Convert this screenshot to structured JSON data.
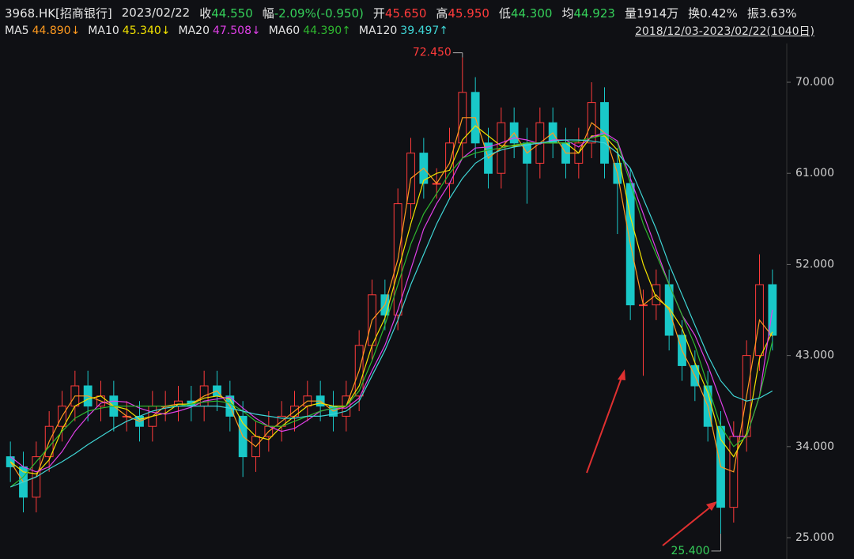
{
  "header": {
    "symbol": "3968.HK[招商银行]",
    "date": "2023/02/22",
    "fields": [
      {
        "label": "收",
        "value": "44.550",
        "color": "#35d05a"
      },
      {
        "label": "幅",
        "value": "-2.09%(-0.950)",
        "color": "#35d05a"
      },
      {
        "label": "开",
        "value": "45.650",
        "color": "#ff3b3b"
      },
      {
        "label": "高",
        "value": "45.950",
        "color": "#ff3b3b"
      },
      {
        "label": "低",
        "value": "44.300",
        "color": "#35d05a"
      },
      {
        "label": "均",
        "value": "44.923",
        "color": "#35d05a"
      },
      {
        "label": "量",
        "value": "1914万",
        "color": "#e6e6e6"
      },
      {
        "label": "换",
        "value": "0.42%",
        "color": "#e6e6e6"
      },
      {
        "label": "振",
        "value": "3.63%",
        "color": "#e6e6e6"
      }
    ],
    "range": "2018/12/03-2023/02/22(1040日)"
  },
  "chart_data": {
    "type": "candlestick",
    "categories": [
      null,
      null,
      null,
      null,
      null,
      null,
      null,
      null,
      null,
      null,
      null,
      null,
      null,
      null,
      null,
      null,
      null,
      null,
      null,
      null,
      null,
      null,
      null,
      null,
      null,
      null,
      null,
      null,
      null,
      null,
      null,
      null,
      null,
      null,
      null,
      null,
      null,
      null,
      null,
      null,
      null,
      null,
      null,
      null,
      null,
      null,
      null,
      null,
      null,
      null,
      null,
      null,
      null,
      null,
      null,
      null,
      null,
      null,
      null,
      null
    ],
    "open": [
      33,
      32,
      29,
      33,
      36,
      38,
      40,
      38,
      39,
      37,
      37,
      36,
      38,
      38,
      38.5,
      38,
      40,
      39,
      37,
      33,
      35,
      36,
      37,
      38,
      39,
      38,
      37,
      39,
      44,
      49,
      47,
      58,
      63,
      60,
      60,
      64,
      69,
      64,
      61,
      66,
      64,
      62,
      66,
      64,
      62,
      64,
      68,
      62,
      60,
      48,
      48,
      50,
      45,
      42,
      40,
      36,
      28,
      35,
      43,
      50
    ],
    "high": [
      34.5,
      33.5,
      34.5,
      37.5,
      39.5,
      41.5,
      41.5,
      40.5,
      40.5,
      38.5,
      38.5,
      39.5,
      39.5,
      40,
      40,
      41.5,
      41.5,
      40.5,
      38.5,
      36.5,
      37.5,
      38.5,
      39.5,
      40.5,
      40.5,
      39.5,
      40.5,
      45.5,
      50.5,
      50.5,
      59.5,
      64.5,
      64.5,
      61.5,
      65.5,
      72.45,
      70.5,
      65.5,
      67.5,
      67.5,
      65.5,
      67.5,
      67.5,
      65.5,
      65.5,
      70,
      69.5,
      63.5,
      61.5,
      49.5,
      51.5,
      51.5,
      46.5,
      43.5,
      41.5,
      37.5,
      36.5,
      44.5,
      53,
      51.5
    ],
    "low": [
      30.5,
      27.5,
      27.5,
      31.5,
      34.5,
      36.5,
      36.5,
      36.5,
      35.5,
      35.5,
      34.5,
      34.5,
      36.5,
      36.5,
      36.5,
      36.5,
      37.5,
      35.5,
      31,
      31.5,
      33.5,
      34.5,
      35.5,
      36.5,
      36.5,
      35.5,
      35.5,
      37.5,
      42.5,
      45.5,
      45.5,
      56.5,
      58.5,
      58.5,
      58.5,
      62.5,
      62.5,
      59.5,
      59.5,
      62.5,
      58,
      60.5,
      62.5,
      60.5,
      60.5,
      62.5,
      60.5,
      55,
      46.5,
      41,
      46.5,
      43.5,
      40.5,
      38.5,
      34.5,
      25.4,
      26.5,
      33.5,
      41.5,
      43.5
    ],
    "close": [
      32,
      29,
      33,
      36,
      38,
      40,
      38,
      39,
      37,
      37,
      36,
      38,
      38,
      38.5,
      38,
      40,
      39,
      37,
      33,
      35,
      36,
      37,
      38,
      39,
      38,
      37,
      39,
      44,
      49,
      47,
      58,
      63,
      60,
      60,
      64,
      69,
      64,
      61,
      66,
      64,
      62,
      66,
      64,
      62,
      64,
      68,
      62,
      60,
      48,
      48,
      50,
      45,
      42,
      40,
      36,
      28,
      35,
      43,
      50,
      45
    ],
    "up_color": "#ff3b3b",
    "down_color": "#19c8c8",
    "series": [
      {
        "name": "MA5",
        "color": "#ff9a1f",
        "latest": {
          "value": 44.89,
          "label": "44.890↓"
        },
        "values": [
          32.5,
          30.5,
          31,
          34.5,
          37,
          39,
          39,
          38.5,
          38,
          37,
          36.5,
          37,
          38,
          38.2,
          38.2,
          39,
          39.5,
          38,
          35,
          34,
          35.5,
          36.5,
          37.5,
          38.5,
          38.5,
          37.5,
          38,
          41.5,
          46.5,
          48,
          52.5,
          60.5,
          61.5,
          60,
          62,
          66.5,
          66.5,
          62.5,
          63.5,
          65,
          63,
          64,
          65,
          63,
          63,
          66,
          65,
          61,
          54,
          48,
          49,
          47.5,
          43.5,
          41,
          38,
          32,
          31.5,
          39,
          46.5,
          44.89
        ]
      },
      {
        "name": "MA10",
        "color": "#f2e200",
        "latest": {
          "value": 45.34,
          "label": "45.340↓"
        },
        "values": [
          32.5,
          31.5,
          31.3,
          32.7,
          35.7,
          38,
          38.7,
          39,
          38,
          37.7,
          36.7,
          37,
          37.3,
          38.2,
          38.2,
          38.8,
          39,
          38.7,
          36.3,
          35,
          34.7,
          36,
          37,
          38,
          38.3,
          38,
          38,
          40,
          44,
          46.7,
          51.3,
          56,
          60.3,
          61,
          61.3,
          64.3,
          65.7,
          64.7,
          63.7,
          63.7,
          64,
          64,
          64,
          64,
          63,
          64.7,
          64.7,
          63.3,
          56.7,
          52,
          48.7,
          47.7,
          45.7,
          42.3,
          39.3,
          34.7,
          33,
          35.3,
          42.7,
          45.34
        ]
      },
      {
        "name": "MA20",
        "color": "#e040e8",
        "latest": {
          "value": 47.508,
          "label": "47.508↓"
        },
        "values": [
          33,
          32,
          31.5,
          32,
          33.5,
          35.5,
          37,
          38.3,
          38.5,
          38.4,
          37.8,
          37.4,
          37.2,
          37.5,
          37.9,
          38.5,
          38.7,
          38.9,
          37.8,
          36.8,
          36,
          35.5,
          35.8,
          36.6,
          37.5,
          37.8,
          37.8,
          38.8,
          41.5,
          44,
          47.5,
          51.5,
          55.5,
          58,
          60,
          62.5,
          63.5,
          63.6,
          64,
          64.5,
          64.3,
          63.9,
          64.3,
          64.3,
          63.6,
          64.6,
          65,
          64.2,
          60.5,
          57,
          53.5,
          50,
          47,
          45,
          42,
          38.5,
          35,
          35,
          39,
          47.508
        ]
      },
      {
        "name": "MA60",
        "color": "#2fb82f",
        "latest": {
          "value": 44.39,
          "label": "44.390↑"
        },
        "values": [
          30,
          31,
          32.5,
          34,
          35.5,
          36.8,
          37.5,
          37.8,
          38,
          38,
          38,
          38,
          38,
          38,
          38.2,
          38.4,
          38.5,
          38.3,
          37.5,
          36.5,
          36,
          36,
          36.5,
          37,
          37.5,
          37.8,
          38,
          39.5,
          42.5,
          46,
          50,
          54,
          57,
          59,
          61,
          62.5,
          63,
          63.3,
          63.5,
          63.8,
          64,
          64,
          64,
          64,
          64.2,
          64.5,
          64.8,
          64,
          60,
          56,
          53,
          50,
          47,
          44,
          40,
          36,
          34,
          35,
          39,
          44.39
        ]
      },
      {
        "name": "MA120",
        "color": "#3fd6d6",
        "latest": {
          "value": 39.497,
          "label": "39.497↑"
        },
        "values": [
          30,
          30.5,
          31,
          31.8,
          32.5,
          33.3,
          34.2,
          35,
          35.8,
          36.5,
          37,
          37.5,
          37.8,
          38,
          38,
          38,
          38,
          37.8,
          37.5,
          37.2,
          37,
          36.8,
          36.8,
          37,
          37,
          37.2,
          37.5,
          38.5,
          41,
          43.5,
          46.5,
          50,
          53,
          56,
          58.5,
          60.5,
          62,
          62.8,
          63.3,
          63.6,
          63.8,
          64,
          64.2,
          64.3,
          64.3,
          64.2,
          64,
          63,
          61.5,
          58.5,
          55.5,
          52,
          49,
          46,
          43,
          40.5,
          39,
          38.5,
          38.8,
          39.497
        ]
      }
    ],
    "annotations": [
      {
        "text": "72.450",
        "value": 72.45,
        "color": "#ff3b3b"
      },
      {
        "text": "25.400",
        "value": 25.4,
        "color": "#35d05a"
      }
    ],
    "ylim": [
      23.83,
      73.83
    ],
    "yticks": [
      {
        "value": 25,
        "label": "25.000"
      },
      {
        "value": 34,
        "label": "34.000"
      },
      {
        "value": 43,
        "label": "43.000"
      },
      {
        "value": 52,
        "label": "52.000"
      },
      {
        "value": 61,
        "label": "61.000"
      },
      {
        "value": 70,
        "label": "70.000"
      }
    ],
    "grid": false
  }
}
